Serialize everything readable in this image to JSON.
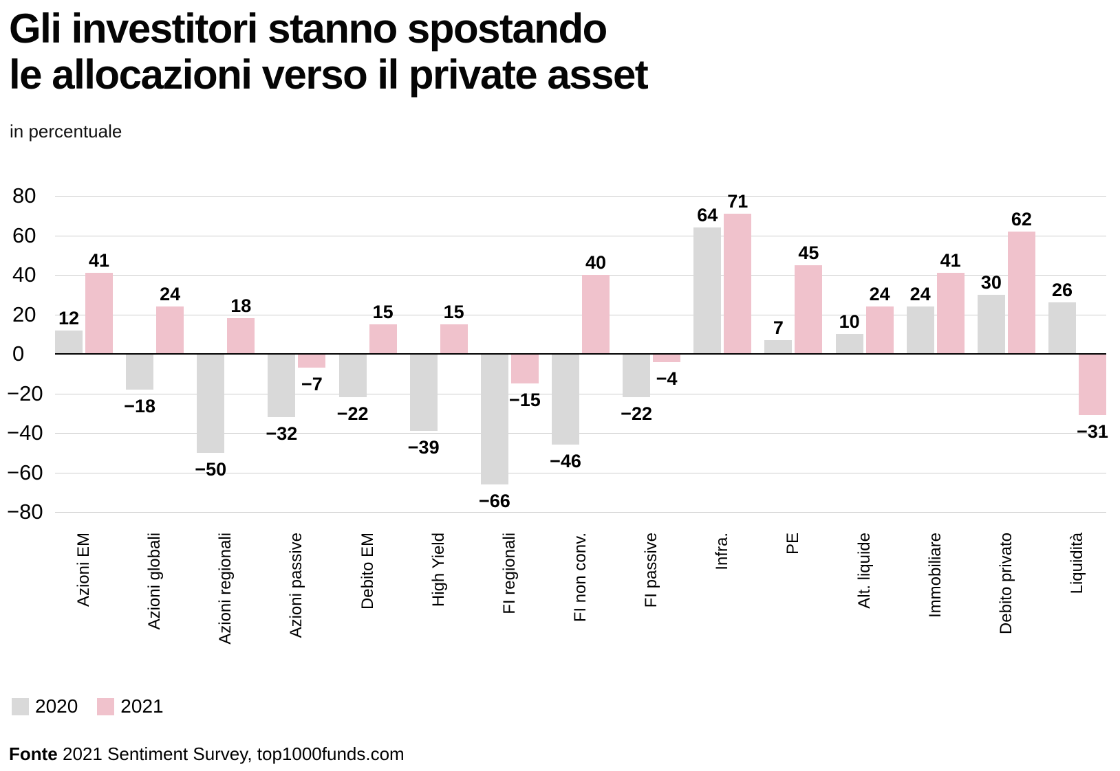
{
  "header": {
    "title_line1": "Gli investitori stanno spostando",
    "title_line2": "le allocazioni verso il private asset",
    "subtitle": "in percentuale"
  },
  "legend": {
    "items": [
      {
        "label": "2020",
        "color": "#d9d9d9"
      },
      {
        "label": "2021",
        "color": "#f0c2cc"
      }
    ]
  },
  "footer": {
    "source_label": "Fonte",
    "source_text": "2021 Sentiment Survey, top1000funds.com"
  },
  "chart_data": {
    "type": "bar",
    "title": "Gli investitori stanno spostando le allocazioni verso il private asset",
    "subtitle": "in percentuale",
    "categories": [
      "Azioni EM",
      "Azioni globali",
      "Azioni regionali",
      "Azioni passive",
      "Debito EM",
      "High Yield",
      "FI regionali",
      "FI non conv.",
      "FI passive",
      "Infra.",
      "PE",
      "Alt. liquide",
      "Immobiliare",
      "Debito privato",
      "Liquidità"
    ],
    "series": [
      {
        "name": "2020",
        "color": "#d9d9d9",
        "values": [
          12,
          -18,
          -50,
          -32,
          -22,
          -39,
          -66,
          -46,
          -22,
          64,
          7,
          10,
          24,
          30,
          26
        ]
      },
      {
        "name": "2021",
        "color": "#f0c2cc",
        "values": [
          41,
          24,
          18,
          -7,
          15,
          15,
          -15,
          40,
          -4,
          71,
          45,
          24,
          41,
          62,
          -31
        ]
      }
    ],
    "ylim": [
      -80,
      80
    ],
    "yticks": [
      80,
      60,
      40,
      20,
      0,
      -20,
      -40,
      -60,
      -80
    ],
    "grid": true,
    "gridline_color": "#cccccc",
    "zero_line_color": "#000000",
    "legend_position": "bottom-left",
    "source": "Fonte 2021 Sentiment Survey, top1000funds.com"
  }
}
